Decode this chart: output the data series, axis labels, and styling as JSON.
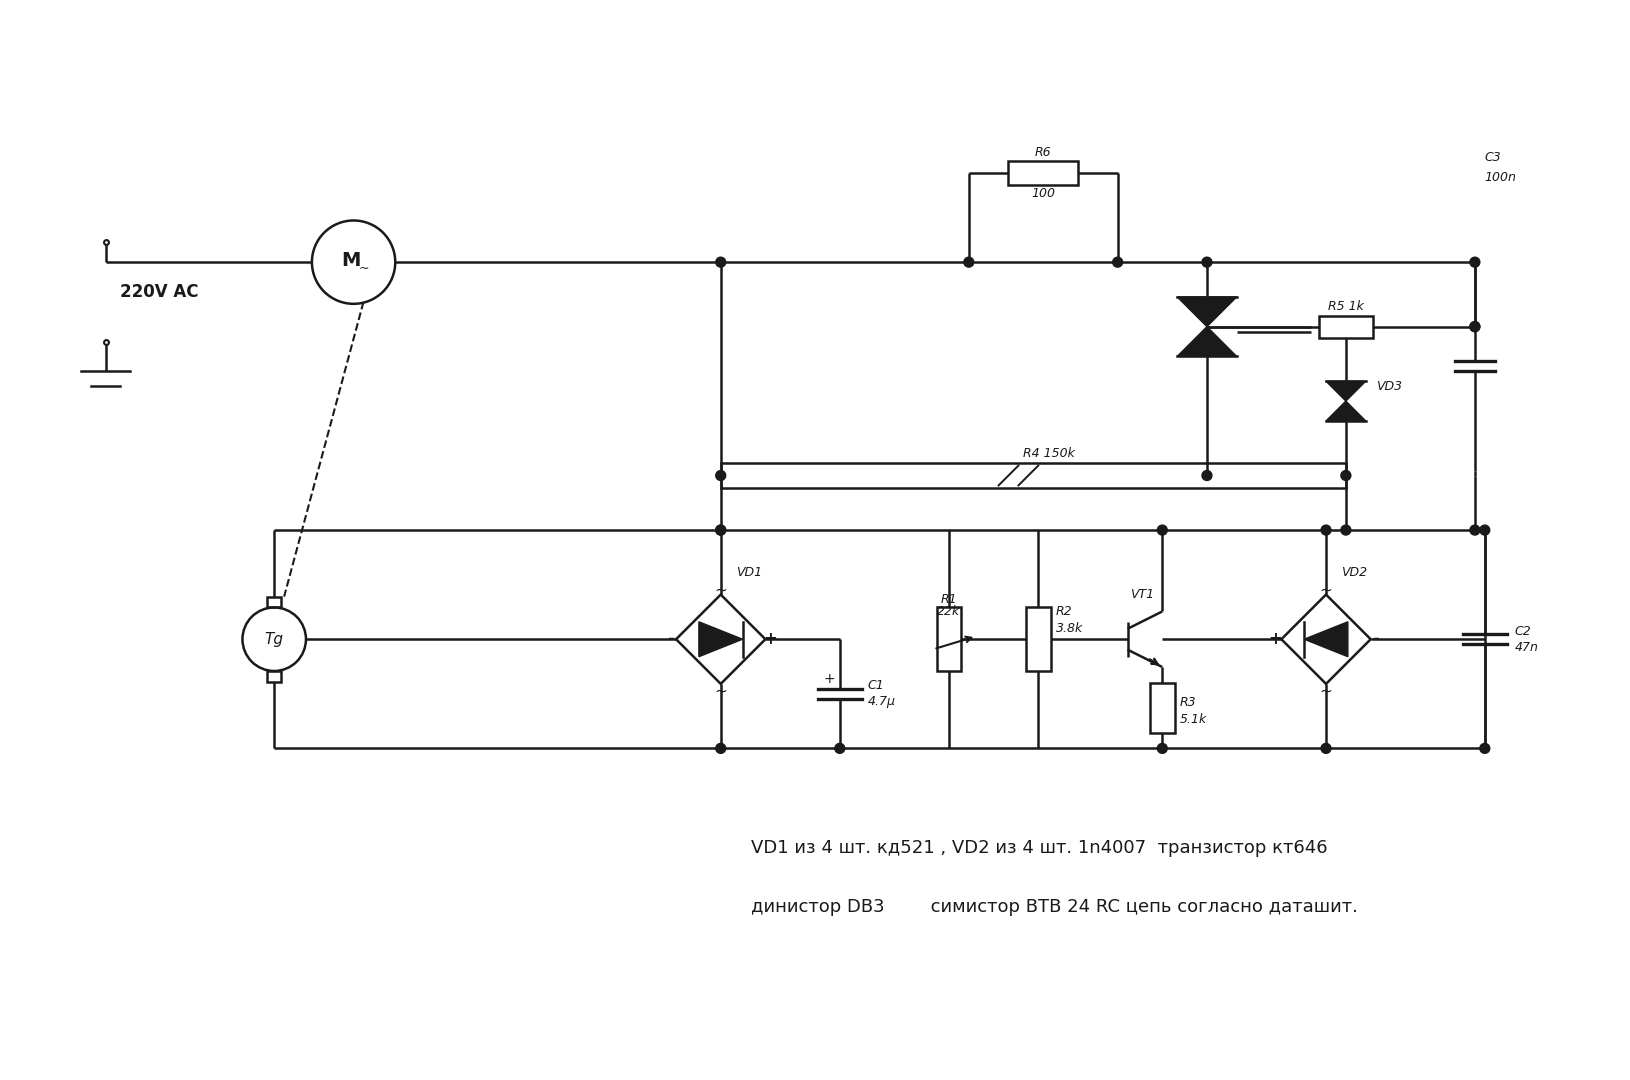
{
  "bg_color": "#ffffff",
  "lc": "#1a1a1a",
  "lw": 1.8,
  "caption1": "VD1 из 4 шт. кд521 , VD2 из 4 шт. 1n4007  транзистор кт646",
  "caption2": "динистор DB3        симистор BTB 24 RC цепь согласно даташит.",
  "ac_label": "220V AC",
  "figsize": [
    16.3,
    10.8
  ],
  "dpi": 100
}
